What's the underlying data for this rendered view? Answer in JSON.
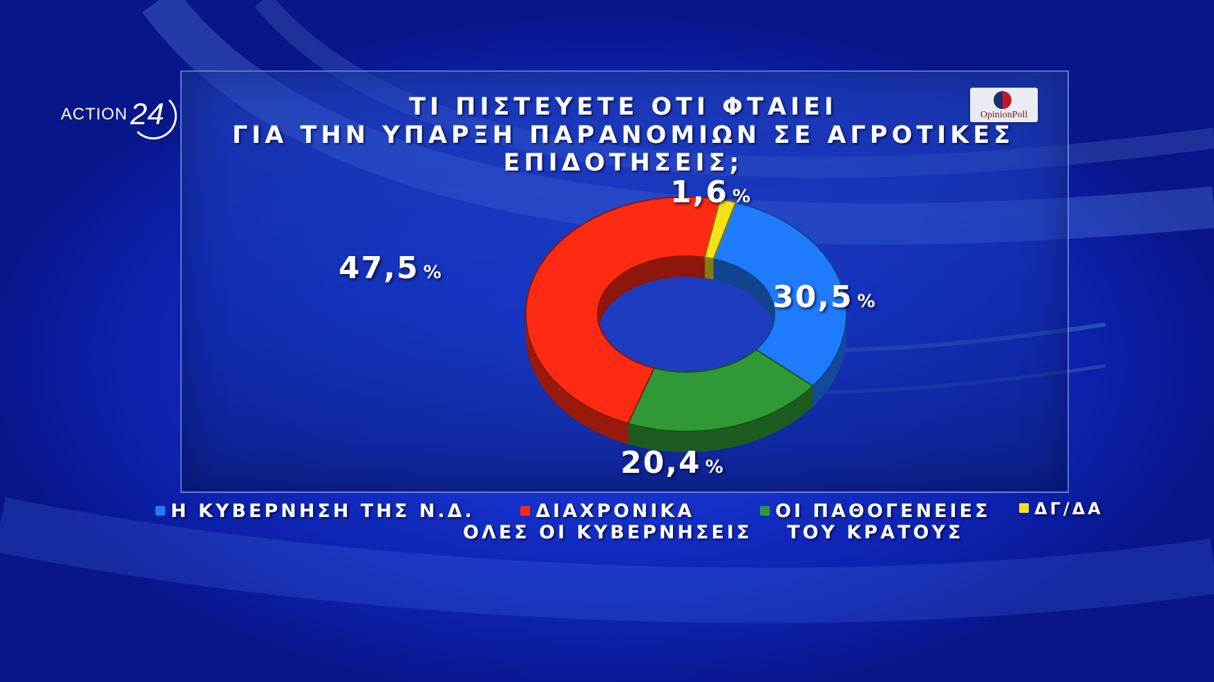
{
  "channel_logo": {
    "word": "ACTION",
    "number": "24"
  },
  "pollster": {
    "name": "OpinionPoll"
  },
  "chart_data": {
    "type": "pie",
    "donut": true,
    "title": "ΤΙ ΠΙΣΤΕΥΕΤΕ ΟΤΙ ΦΤΑΙΕΙ",
    "subtitle": "ΓΙΑ ΤΗΝ ΥΠΑΡΞΗ ΠΑΡΑΝΟΜΙΩΝ ΣΕ ΑΓΡΟΤΙΚΕΣ ΕΠΙΔΟΤΗΣΕΙΣ;",
    "unit": "%",
    "legend_position": "bottom",
    "slices": [
      {
        "label": "Η ΚΥΒΕΡΝΗΣΗ ΤΗΣ Ν.Δ.",
        "label_lines": [
          "Η ΚΥΒΕΡΝΗΣΗ ΤΗΣ Ν.Δ."
        ],
        "value": 30.5,
        "display": "30,5",
        "color": "#1f7bff"
      },
      {
        "label": "ΟΙ ΠΑΘΟΓΕΝΕΙΕΣ ΤΟΥ ΚΡΑΤΟΥΣ",
        "label_lines": [
          "ΟΙ ΠΑΘΟΓΕΝΕΙΕΣ",
          "ΤΟΥ ΚΡΑΤΟΥΣ"
        ],
        "value": 20.4,
        "display": "20,4",
        "color": "#2f9a35"
      },
      {
        "label": "ΔΙΑΧΡΟΝΙΚΑ ΟΛΕΣ ΟΙ ΚΥΒΕΡΝΗΣΕΙΣ",
        "label_lines": [
          "ΔΙΑΧΡΟΝΙΚΑ",
          "ΟΛΕΣ ΟΙ ΚΥΒΕΡΝΗΣΕΙΣ"
        ],
        "value": 47.5,
        "display": "47,5",
        "color": "#ff2a12"
      },
      {
        "label": "ΔΓ/ΔΑ",
        "label_lines": [
          "ΔΓ/ΔΑ"
        ],
        "value": 1.6,
        "display": "1,6",
        "color": "#f2e21a"
      }
    ]
  }
}
